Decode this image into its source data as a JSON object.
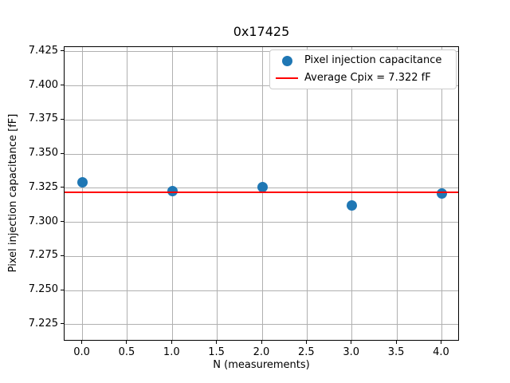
{
  "chart_data": {
    "type": "scatter",
    "title": "0x17425",
    "xlabel": "N (measurements)",
    "ylabel": "Pixel injection capacitance [fF]",
    "series": [
      {
        "name": "Pixel injection capacitance",
        "marker": "circle",
        "color": "#1f77b4",
        "x": [
          0,
          1,
          2,
          3,
          4
        ],
        "y": [
          7.329,
          7.323,
          7.3255,
          7.3125,
          7.321
        ]
      }
    ],
    "average_line": {
      "label": "Average Cpix = 7.322 fF",
      "value": 7.322,
      "color": "#ff0000"
    },
    "xlim": [
      -0.2,
      4.2
    ],
    "ylim": [
      7.2126,
      7.4284
    ],
    "xticks": {
      "values": [
        0.0,
        0.5,
        1.0,
        1.5,
        2.0,
        2.5,
        3.0,
        3.5,
        4.0
      ],
      "labels": [
        "0.0",
        "0.5",
        "1.0",
        "1.5",
        "2.0",
        "2.5",
        "3.0",
        "3.5",
        "4.0"
      ]
    },
    "yticks": {
      "values": [
        7.225,
        7.25,
        7.275,
        7.3,
        7.325,
        7.35,
        7.375,
        7.4,
        7.425
      ],
      "labels": [
        "7.225",
        "7.250",
        "7.275",
        "7.300",
        "7.325",
        "7.350",
        "7.375",
        "7.400",
        "7.425"
      ]
    },
    "grid": true,
    "grid_color": "#b0b0b0",
    "background_color": "#ffffff",
    "legend": {
      "position": "upper right",
      "entries": [
        {
          "label": "Pixel injection capacitance",
          "marker": "dot",
          "color": "#1f77b4"
        },
        {
          "label": "Average Cpix = 7.322 fF",
          "marker": "line",
          "color": "#ff0000"
        }
      ]
    }
  }
}
